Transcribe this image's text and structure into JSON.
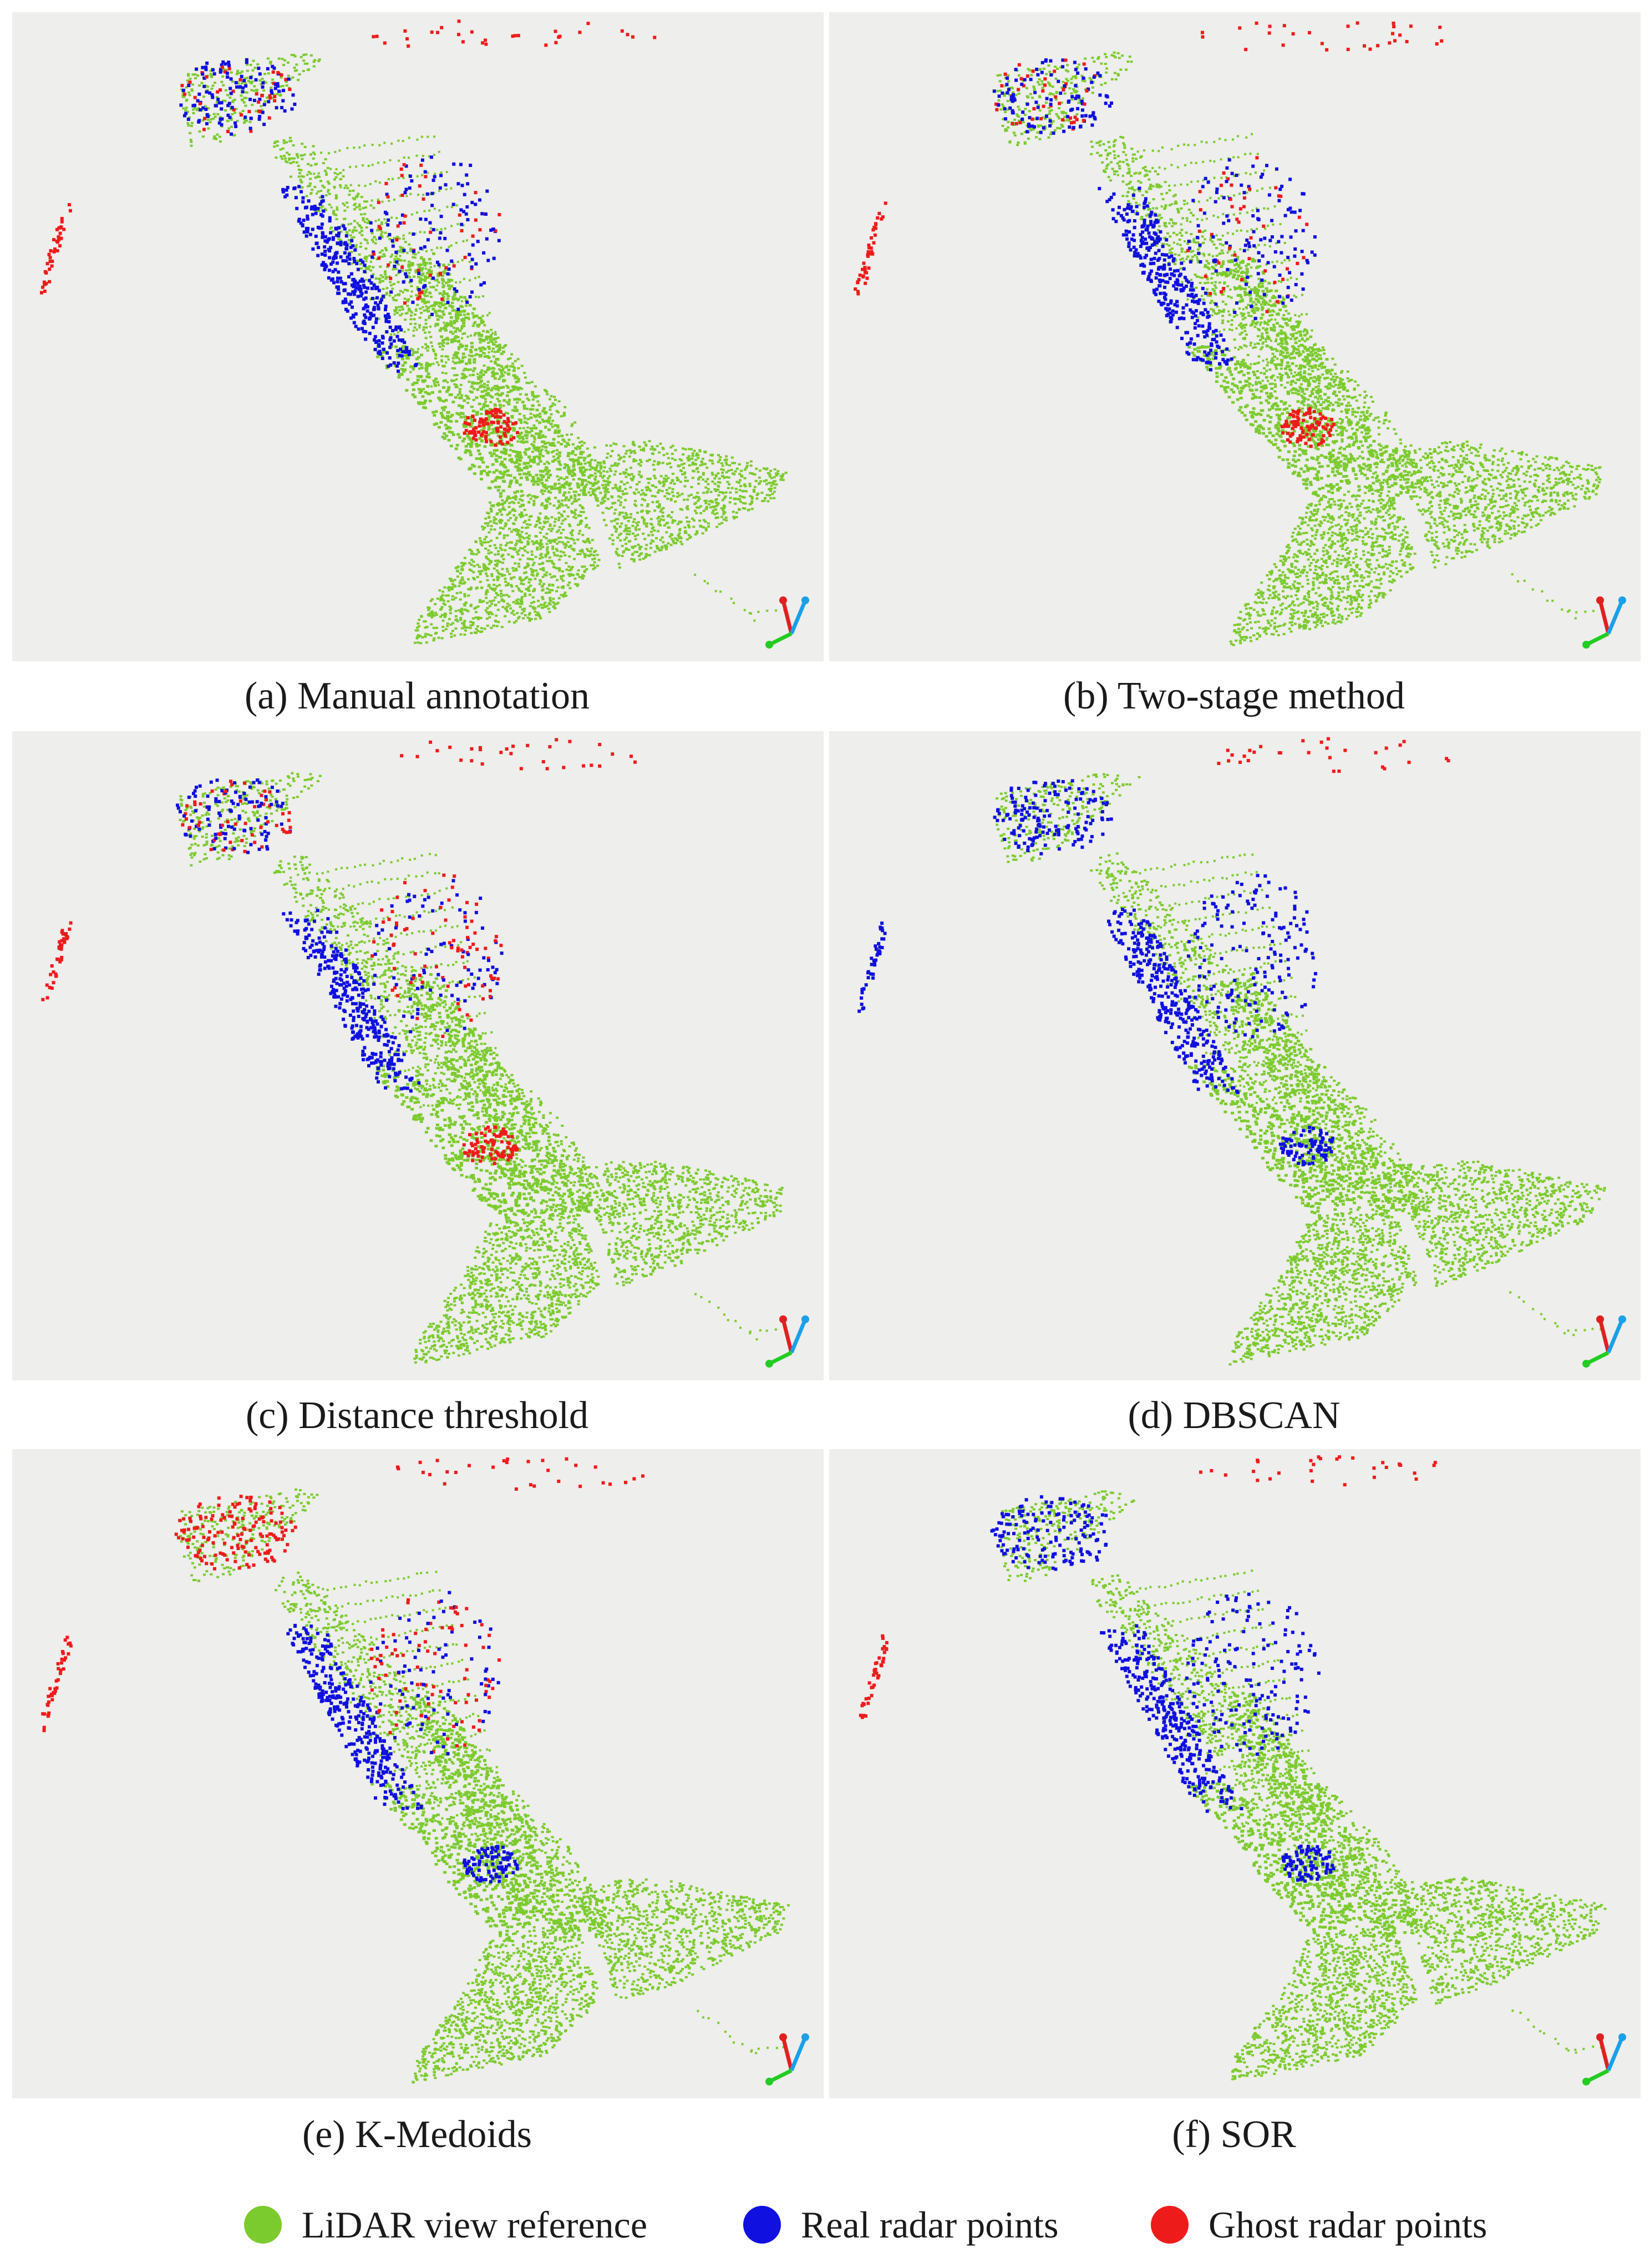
{
  "colors": {
    "lidar": "#7ccb2e",
    "real": "#1010e0",
    "ghost": "#ee1b1b",
    "panel_bg": "#eeeeec",
    "axis_red": "#e02020",
    "axis_cyan": "#1aa0e8",
    "axis_green": "#22cc22"
  },
  "panels": [
    {
      "id": "a",
      "caption": "(a) Manual annotation",
      "labeling": "manual"
    },
    {
      "id": "b",
      "caption": "(b) Two-stage method",
      "labeling": "two-stage"
    },
    {
      "id": "c",
      "caption": "(c) Distance threshold",
      "labeling": "distance"
    },
    {
      "id": "d",
      "caption": "(d) DBSCAN",
      "labeling": "dbscan"
    },
    {
      "id": "e",
      "caption": "(e) K-Medoids",
      "labeling": "kmedoids"
    },
    {
      "id": "f",
      "caption": "(f) SOR",
      "labeling": "sor"
    }
  ],
  "legend": [
    {
      "label": "LiDAR view reference",
      "color_key": "lidar"
    },
    {
      "label": "Real radar points",
      "color_key": "real"
    },
    {
      "label": "Ghost radar points",
      "color_key": "ghost"
    }
  ],
  "icons": {
    "axes": "xyz-axes-icon"
  }
}
